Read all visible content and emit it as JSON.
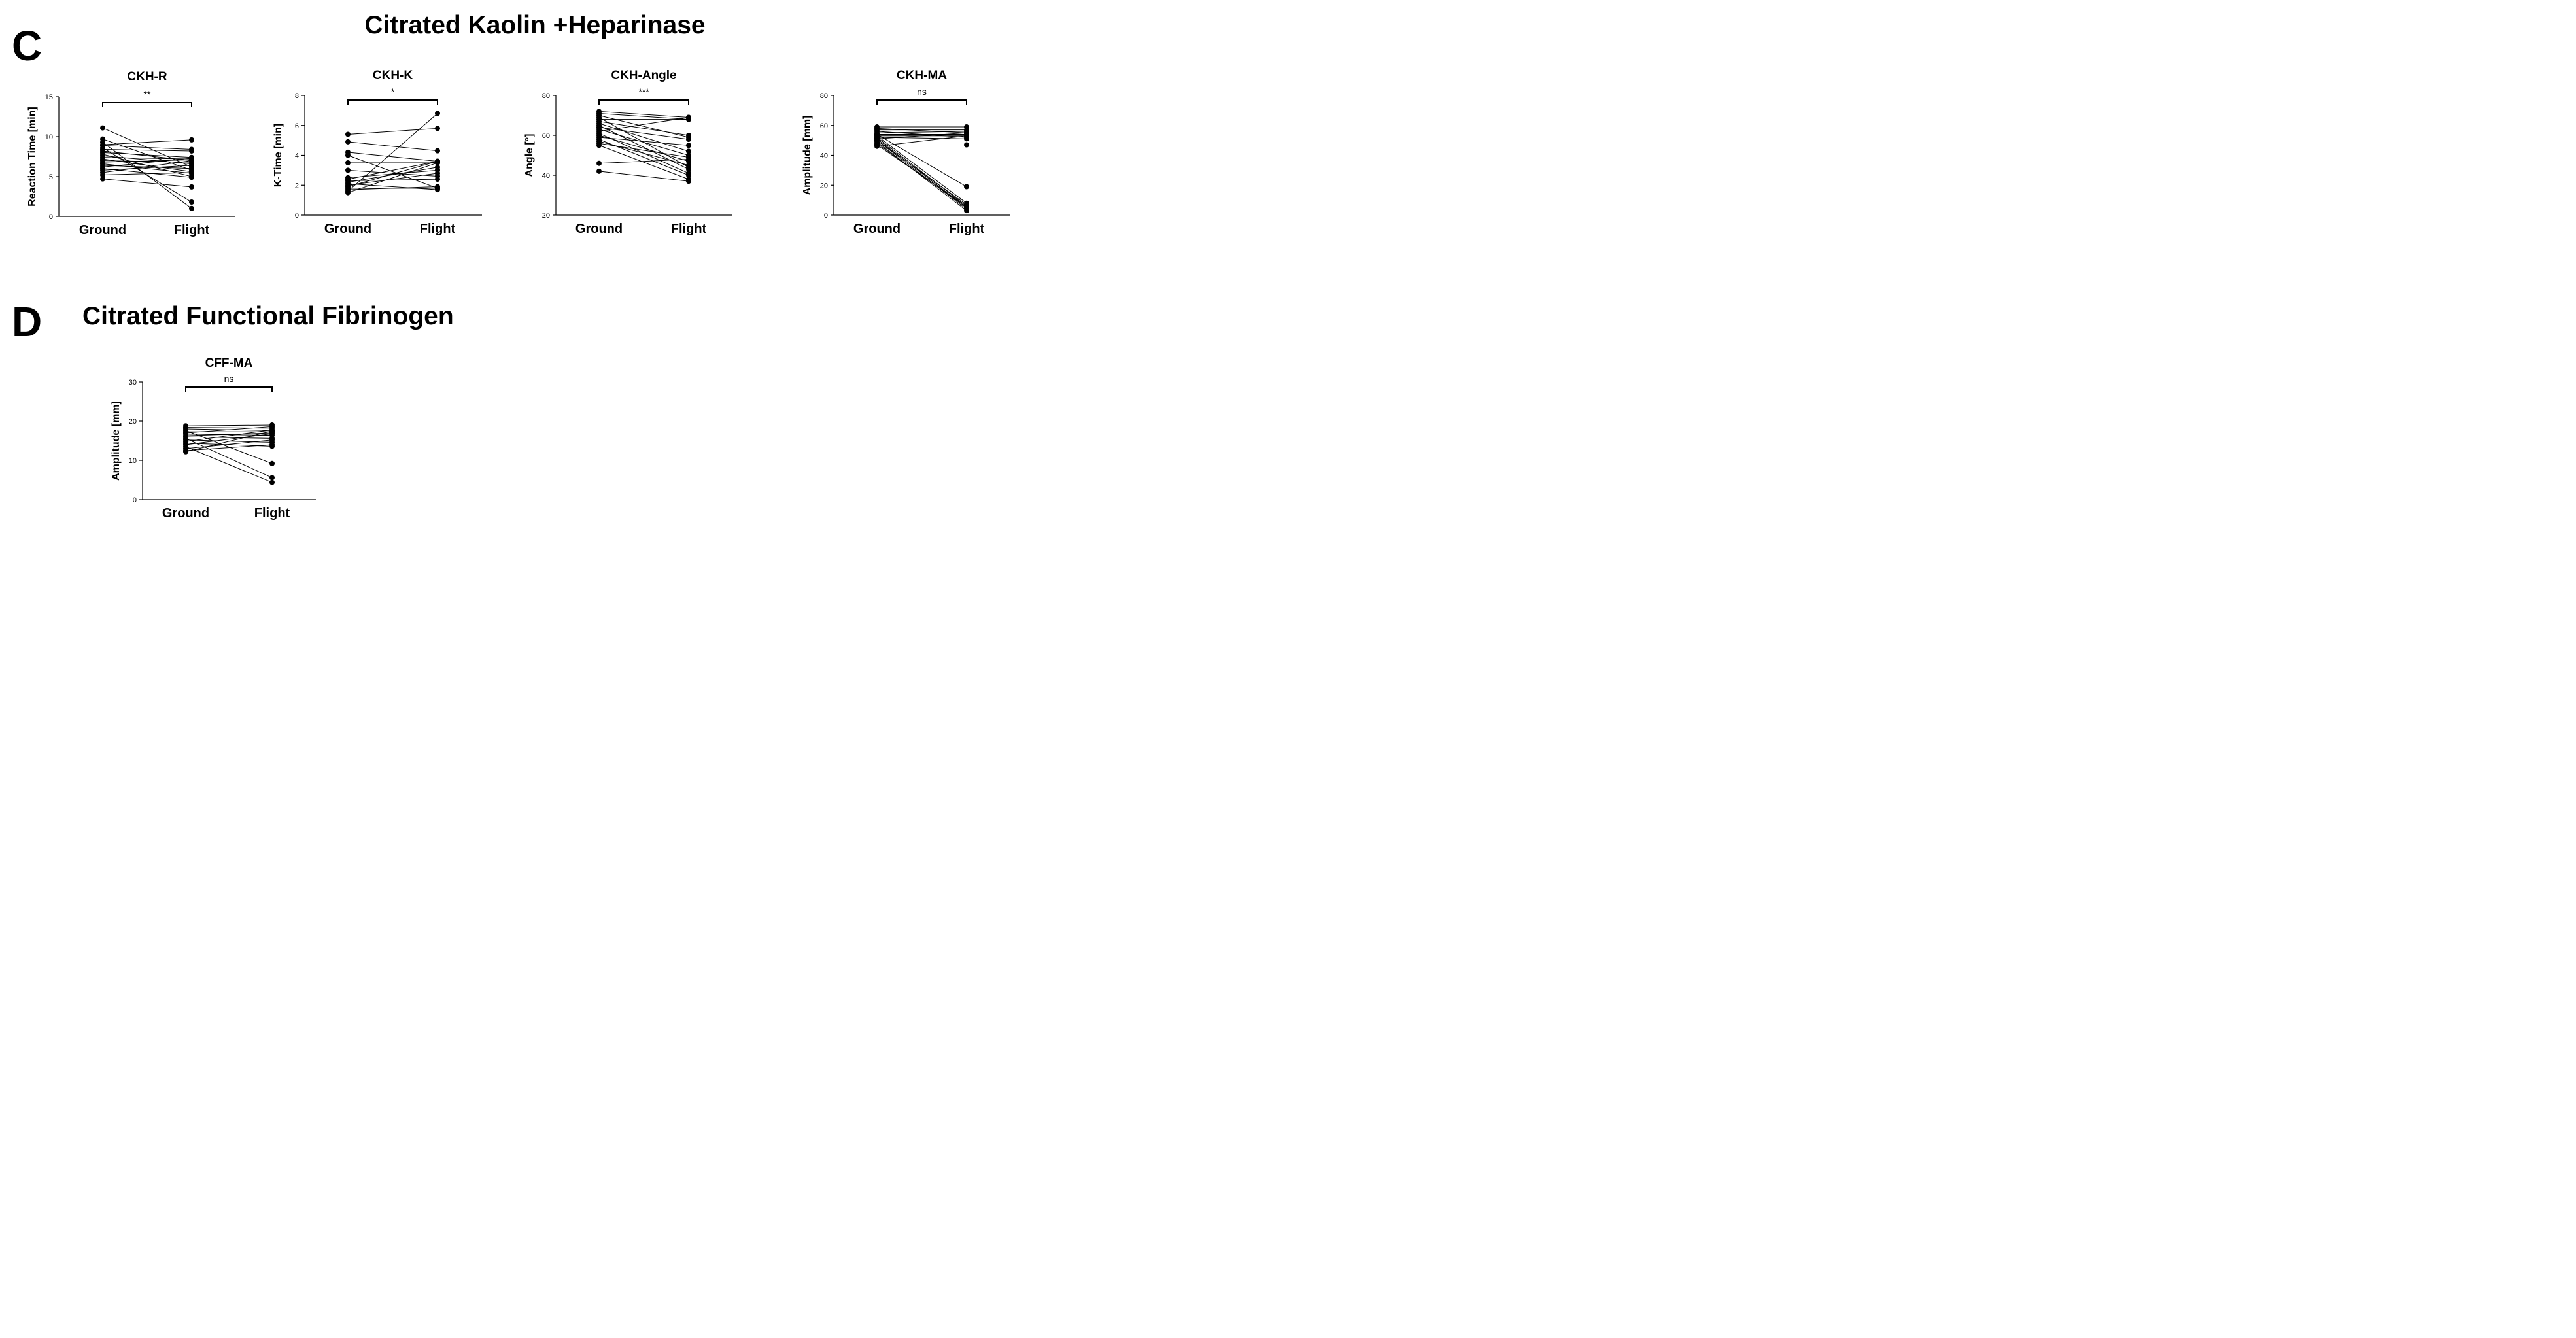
{
  "panels": [
    {
      "letter": "C",
      "title": "Citrated Kaolin +Heparinase"
    },
    {
      "letter": "D",
      "title": "Citrated Functional Fibrinogen"
    }
  ],
  "chart_data": [
    {
      "type": "line",
      "title": "CKH-R",
      "xlabel": "",
      "ylabel": "Reaction Time [min]",
      "categories": [
        "Ground",
        "Flight"
      ],
      "ylim": [
        0,
        15
      ],
      "yticks": [
        0,
        5,
        10,
        15
      ],
      "significance": "**",
      "series": [
        {
          "values": [
            11.1,
            6.2
          ]
        },
        {
          "values": [
            9.7,
            5.8
          ]
        },
        {
          "values": [
            9.3,
            1.0
          ]
        },
        {
          "values": [
            9.0,
            9.6
          ]
        },
        {
          "values": [
            8.9,
            8.4
          ]
        },
        {
          "values": [
            8.6,
            1.8
          ]
        },
        {
          "values": [
            8.4,
            8.2
          ]
        },
        {
          "values": [
            8.2,
            7.0
          ]
        },
        {
          "values": [
            8.0,
            7.4
          ]
        },
        {
          "values": [
            7.8,
            5.0
          ]
        },
        {
          "values": [
            7.6,
            6.6
          ]
        },
        {
          "values": [
            7.4,
            7.2
          ]
        },
        {
          "values": [
            7.2,
            5.6
          ]
        },
        {
          "values": [
            7.0,
            6.8
          ]
        },
        {
          "values": [
            6.8,
            7.1
          ]
        },
        {
          "values": [
            6.6,
            5.4
          ]
        },
        {
          "values": [
            6.4,
            6.0
          ]
        },
        {
          "values": [
            6.2,
            7.3
          ]
        },
        {
          "values": [
            6.0,
            4.9
          ]
        },
        {
          "values": [
            5.8,
            6.4
          ]
        },
        {
          "values": [
            5.5,
            7.0
          ]
        },
        {
          "values": [
            5.2,
            5.5
          ]
        },
        {
          "values": [
            4.7,
            3.7
          ]
        }
      ]
    },
    {
      "type": "line",
      "title": "CKH-K",
      "xlabel": "",
      "ylabel": "K-Time [min]",
      "categories": [
        "Ground",
        "Flight"
      ],
      "ylim": [
        0,
        8
      ],
      "yticks": [
        0,
        2,
        4,
        6,
        8
      ],
      "significance": "*",
      "series": [
        {
          "values": [
            5.4,
            5.8
          ]
        },
        {
          "values": [
            4.9,
            4.3
          ]
        },
        {
          "values": [
            4.2,
            3.6
          ]
        },
        {
          "values": [
            4.0,
            1.8
          ]
        },
        {
          "values": [
            3.5,
            3.5
          ]
        },
        {
          "values": [
            3.0,
            2.6
          ]
        },
        {
          "values": [
            2.5,
            3.0
          ]
        },
        {
          "values": [
            2.4,
            3.6
          ]
        },
        {
          "values": [
            2.3,
            2.4
          ]
        },
        {
          "values": [
            2.2,
            3.2
          ]
        },
        {
          "values": [
            2.1,
            1.7
          ]
        },
        {
          "values": [
            2.0,
            2.8
          ]
        },
        {
          "values": [
            1.9,
            3.6
          ]
        },
        {
          "values": [
            1.8,
            1.8
          ]
        },
        {
          "values": [
            1.7,
            1.9
          ]
        },
        {
          "values": [
            1.6,
            6.8
          ]
        },
        {
          "values": [
            1.5,
            3.5
          ]
        }
      ]
    },
    {
      "type": "line",
      "title": "CKH-Angle",
      "xlabel": "",
      "ylabel": "Angle [°]",
      "categories": [
        "Ground",
        "Flight"
      ],
      "ylim": [
        20,
        80
      ],
      "yticks": [
        20,
        40,
        60,
        80
      ],
      "significance": "***",
      "series": [
        {
          "values": [
            72,
            69
          ]
        },
        {
          "values": [
            71,
            68
          ]
        },
        {
          "values": [
            70,
            59
          ]
        },
        {
          "values": [
            69,
            44
          ]
        },
        {
          "values": [
            68,
            68
          ]
        },
        {
          "values": [
            67,
            60
          ]
        },
        {
          "values": [
            66,
            52
          ]
        },
        {
          "values": [
            65,
            43
          ]
        },
        {
          "values": [
            64,
            58
          ]
        },
        {
          "values": [
            63,
            50
          ]
        },
        {
          "values": [
            62,
            69
          ]
        },
        {
          "values": [
            61,
            41
          ]
        },
        {
          "values": [
            60,
            47
          ]
        },
        {
          "values": [
            59,
            55
          ]
        },
        {
          "values": [
            58,
            40
          ]
        },
        {
          "values": [
            57,
            45
          ]
        },
        {
          "values": [
            56,
            49
          ]
        },
        {
          "values": [
            55,
            38
          ]
        },
        {
          "values": [
            46,
            48
          ]
        },
        {
          "values": [
            42,
            37
          ]
        }
      ]
    },
    {
      "type": "line",
      "title": "CKH-MA",
      "xlabel": "",
      "ylabel": "Amplitude [mm]",
      "categories": [
        "Ground",
        "Flight"
      ],
      "ylim": [
        0,
        80
      ],
      "yticks": [
        0,
        20,
        40,
        60,
        80
      ],
      "significance": "ns",
      "series": [
        {
          "values": [
            59,
            59
          ]
        },
        {
          "values": [
            58,
            55
          ]
        },
        {
          "values": [
            57,
            57
          ]
        },
        {
          "values": [
            56,
            52
          ]
        },
        {
          "values": [
            55,
            56
          ]
        },
        {
          "values": [
            54,
            54
          ]
        },
        {
          "values": [
            54,
            19
          ]
        },
        {
          "values": [
            53,
            53
          ]
        },
        {
          "values": [
            53,
            8
          ]
        },
        {
          "values": [
            52,
            6
          ]
        },
        {
          "values": [
            52,
            51
          ]
        },
        {
          "values": [
            51,
            5
          ]
        },
        {
          "values": [
            51,
            55
          ]
        },
        {
          "values": [
            50,
            4
          ]
        },
        {
          "values": [
            50,
            7
          ]
        },
        {
          "values": [
            49,
            3
          ]
        },
        {
          "values": [
            48,
            5
          ]
        },
        {
          "values": [
            47,
            47
          ]
        },
        {
          "values": [
            47,
            6
          ]
        },
        {
          "values": [
            46,
            53
          ]
        }
      ]
    },
    {
      "type": "line",
      "title": "CFF-MA",
      "xlabel": "",
      "ylabel": "Amplitude [mm]",
      "categories": [
        "Ground",
        "Flight"
      ],
      "ylim": [
        0,
        30
      ],
      "yticks": [
        0,
        10,
        20,
        30
      ],
      "significance": "ns",
      "series": [
        {
          "values": [
            18.8,
            19.0
          ]
        },
        {
          "values": [
            18.4,
            18.2
          ]
        },
        {
          "values": [
            18.0,
            17.6
          ]
        },
        {
          "values": [
            17.6,
            9.2
          ]
        },
        {
          "values": [
            17.3,
            17.3
          ]
        },
        {
          "values": [
            17.0,
            18.6
          ]
        },
        {
          "values": [
            16.7,
            16.4
          ]
        },
        {
          "values": [
            16.3,
            17.0
          ]
        },
        {
          "values": [
            16.0,
            15.6
          ]
        },
        {
          "values": [
            15.6,
            5.6
          ]
        },
        {
          "values": [
            15.2,
            14.6
          ]
        },
        {
          "values": [
            14.8,
            17.8
          ]
        },
        {
          "values": [
            14.4,
            13.6
          ]
        },
        {
          "values": [
            14.0,
            16.8
          ]
        },
        {
          "values": [
            13.5,
            4.4
          ]
        },
        {
          "values": [
            13.0,
            15.2
          ]
        },
        {
          "values": [
            12.5,
            14.0
          ]
        },
        {
          "values": [
            12.2,
            17.5
          ]
        }
      ]
    }
  ]
}
